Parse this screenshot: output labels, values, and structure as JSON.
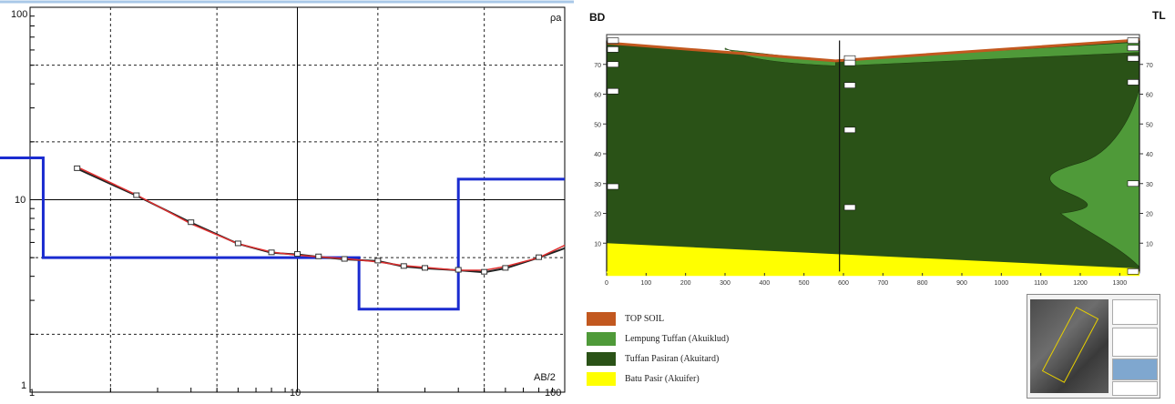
{
  "left_chart": {
    "top_label": "ρa",
    "bottom_label": "AB/2",
    "y_ticks": [
      "100",
      "10",
      "1"
    ],
    "x_ticks": [
      "1",
      "10",
      "100"
    ]
  },
  "right_chart": {
    "left_side_label": "BD",
    "right_side_label": "TL",
    "x_ticks": [
      "0",
      "100",
      "200",
      "300",
      "400",
      "500",
      "600",
      "700",
      "800",
      "900",
      "1000",
      "1100",
      "1200",
      "1300"
    ],
    "y_ticks": [
      "10",
      "20",
      "30",
      "40",
      "50",
      "60",
      "70"
    ],
    "legend": [
      {
        "label": "TOP SOIL",
        "color": "#c2581f"
      },
      {
        "label": "Lempung Tuffan (Akuiklud)",
        "color": "#4f9a39"
      },
      {
        "label": "Tuffan Pasiran (Akuitard)",
        "color": "#2a5217"
      },
      {
        "label": "Batu Pasir (Akuifer)",
        "color": "#ffff00"
      }
    ]
  },
  "chart_data": [
    {
      "type": "line",
      "title": "",
      "xlabel": "AB/2",
      "ylabel": "ρa",
      "xscale": "log",
      "yscale": "log",
      "xlim": [
        1,
        100
      ],
      "ylim": [
        1,
        100
      ],
      "grid": true,
      "series": [
        {
          "role": "measured",
          "color": "#222222",
          "x": [
            1.5,
            2.5,
            4,
            6,
            8,
            10,
            12,
            15,
            20,
            25,
            30,
            40,
            50,
            60,
            80,
            100
          ],
          "y": [
            14.5,
            10.5,
            7.6,
            5.9,
            5.3,
            5.2,
            5.05,
            4.9,
            4.8,
            4.5,
            4.4,
            4.3,
            4.2,
            4.4,
            5.0,
            5.6
          ]
        },
        {
          "role": "fitted curve",
          "color": "#e03030",
          "x": [
            1.5,
            2.5,
            4,
            6,
            8,
            10,
            12,
            15,
            20,
            25,
            30,
            40,
            50,
            60,
            80,
            100
          ],
          "y": [
            14.8,
            10.6,
            7.5,
            5.9,
            5.35,
            5.15,
            5.05,
            4.95,
            4.75,
            4.55,
            4.45,
            4.3,
            4.3,
            4.5,
            5.0,
            5.8
          ]
        },
        {
          "role": "layer model",
          "color": "#1a2bd0",
          "x": [
            1,
            1.12,
            1.12,
            17,
            17,
            40,
            40,
            100
          ],
          "y": [
            16.5,
            16.5,
            5.0,
            5.0,
            2.7,
            2.7,
            12.8,
            12.8
          ]
        }
      ]
    },
    {
      "type": "area",
      "title": "",
      "xlim": [
        0,
        1350
      ],
      "ylim": [
        0,
        80
      ],
      "x_ticks": [
        0,
        100,
        200,
        300,
        400,
        500,
        600,
        700,
        800,
        900,
        1000,
        1100,
        1200,
        1300
      ],
      "y_ticks": [
        10,
        20,
        30,
        40,
        50,
        60,
        70
      ],
      "series": [
        {
          "name": "TOP SOIL",
          "color": "#c2581f"
        },
        {
          "name": "Lempung Tuffan (Akuiklud)",
          "color": "#4f9a39"
        },
        {
          "name": "Tuffan Pasiran (Akuitard)",
          "color": "#2a5217"
        },
        {
          "name": "Batu Pasir (Akuifer)",
          "color": "#ffff00"
        }
      ]
    }
  ]
}
